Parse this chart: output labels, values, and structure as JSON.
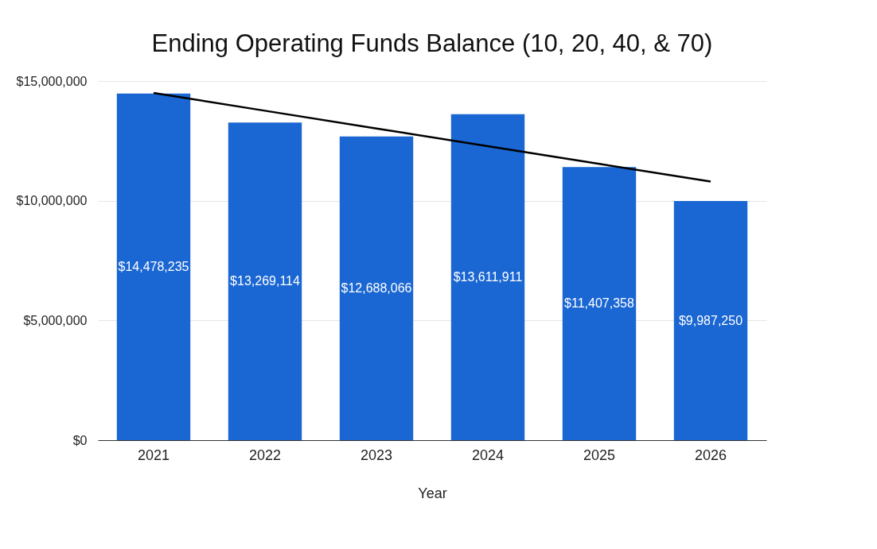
{
  "chart_data": {
    "type": "bar",
    "title": "Ending Operating Funds Balance (10, 20, 40, & 70)",
    "xlabel": "Year",
    "categories": [
      "2021",
      "2022",
      "2023",
      "2024",
      "2025",
      "2026"
    ],
    "series": [
      {
        "color": "#1a66d2",
        "values": [
          14478235,
          13269114,
          12688066,
          13611911,
          11407358,
          9987250
        ],
        "value_labels": [
          "$14,478,235",
          "$13,269,114",
          "$12,688,066",
          "$13,611,911",
          "$11,407,358",
          "$9,987,250"
        ]
      },
      {
        "type": "line",
        "color": "#000000",
        "values": [
          14500000,
          13760000,
          13020000,
          12280000,
          11540000,
          10800000
        ]
      }
    ],
    "ylim": [
      0,
      15000000
    ],
    "yticks": [
      {
        "value": 0,
        "label": "$0"
      },
      {
        "value": 5000000,
        "label": "$5,000,000"
      },
      {
        "value": 10000000,
        "label": "$10,000,000"
      },
      {
        "value": 15000000,
        "label": "$15,000,000"
      }
    ],
    "grid": "y"
  }
}
